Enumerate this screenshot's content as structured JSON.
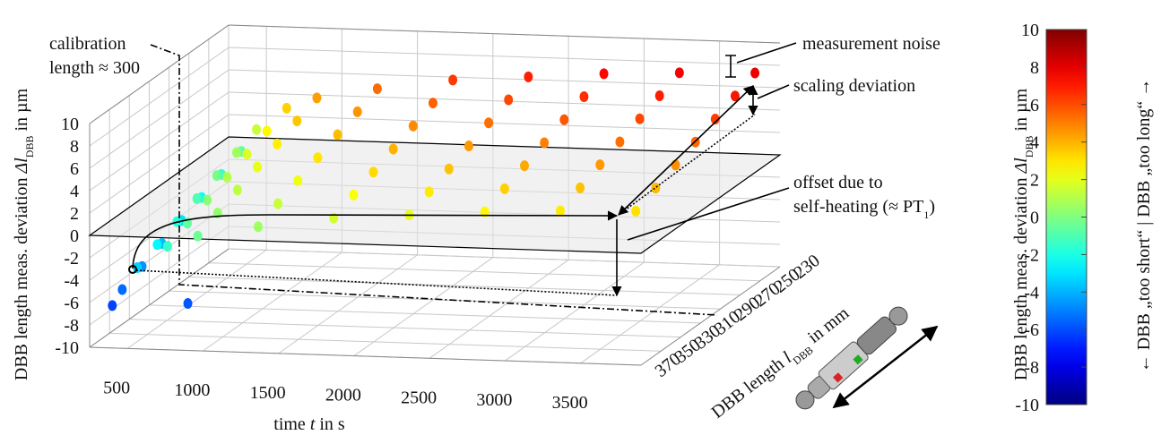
{
  "chart_data": {
    "type": "scatter3d",
    "xlabel": [
      {
        "text": "time "
      },
      {
        "text": "t",
        "style": "italic"
      },
      {
        "text": " in s"
      }
    ],
    "ylabel": [
      {
        "text": "DBB length "
      },
      {
        "text": "l",
        "style": "italic"
      },
      {
        "text": "DBB",
        "style": "sub"
      },
      {
        "text": " in mm"
      }
    ],
    "zlabel": [
      {
        "text": "DBB length meas. deviation "
      },
      {
        "text": "Δl",
        "style": "italic"
      },
      {
        "text": "DBB",
        "style": "sub"
      },
      {
        "text": " in µm"
      }
    ],
    "xlim": [
      250,
      3900
    ],
    "xticks": [
      500,
      1000,
      1500,
      2000,
      2500,
      3000,
      3500
    ],
    "ylim": [
      230,
      370
    ],
    "yticks": [
      230,
      250,
      270,
      290,
      310,
      330,
      350,
      370
    ],
    "zlim": [
      -10,
      10
    ],
    "zticks": [
      -10,
      -8,
      -6,
      -4,
      -2,
      0,
      2,
      4,
      6,
      8,
      10
    ],
    "grid": true,
    "colormap": "jet",
    "clim": [
      -10,
      10
    ],
    "reference_plane_z": 0,
    "colorbar": {
      "ticks": [
        -10,
        -8,
        -6,
        -4,
        -2,
        0,
        2,
        4,
        6,
        8,
        10
      ],
      "label": [
        {
          "text": "DBB length meas. deviation "
        },
        {
          "text": "Δl",
          "style": "italic"
        },
        {
          "text": "DBB",
          "style": "sub"
        },
        {
          "text": " in µm"
        }
      ],
      "annotation": "← DBB „too short“  |  DBB „too long“ →"
    },
    "x": [
      400,
      400,
      400,
      400,
      400,
      400,
      400,
      500,
      500,
      500,
      500,
      500,
      500,
      500,
      700,
      700,
      700,
      700,
      700,
      700,
      700,
      900,
      900,
      900,
      900,
      900,
      900,
      900,
      1300,
      1300,
      1300,
      1300,
      1300,
      1300,
      1300,
      1800,
      1800,
      1800,
      1800,
      1800,
      1800,
      1800,
      2300,
      2300,
      2300,
      2300,
      2300,
      2300,
      2300,
      2800,
      2800,
      2800,
      2800,
      2800,
      2800,
      2800,
      3300,
      3300,
      3300,
      3300,
      3300,
      3300,
      3300,
      3800,
      3800,
      3800,
      3800,
      3800,
      3800,
      3800,
      400,
      900
    ],
    "y": [
      240,
      260,
      280,
      300,
      320,
      340,
      360,
      240,
      260,
      280,
      300,
      320,
      340,
      360,
      240,
      260,
      280,
      300,
      320,
      340,
      360,
      240,
      260,
      280,
      300,
      320,
      340,
      360,
      240,
      260,
      280,
      300,
      320,
      340,
      360,
      240,
      260,
      280,
      300,
      320,
      340,
      360,
      240,
      260,
      280,
      300,
      320,
      340,
      360,
      240,
      260,
      280,
      300,
      320,
      340,
      360,
      240,
      260,
      280,
      300,
      320,
      340,
      360,
      240,
      260,
      280,
      300,
      320,
      340,
      360,
      370,
      370
    ],
    "z": [
      -0.6,
      -1.4,
      -2.2,
      -3,
      -3.8,
      -4.6,
      -5.4,
      1.4,
      0.6,
      -0.2,
      -1,
      -1.8,
      -2.6,
      -3.4,
      3.4,
      2.6,
      1.8,
      1,
      0.2,
      -0.6,
      -1.4,
      4.4,
      3.6,
      2.8,
      2,
      1.2,
      0.4,
      -0.4,
      5.4,
      4.6,
      3.8,
      3,
      2.2,
      1.4,
      0.6,
      6.4,
      5.6,
      4.8,
      4,
      3.2,
      2.4,
      1.6,
      6.9,
      6.1,
      5.3,
      4.5,
      3.7,
      2.9,
      2.1,
      7.4,
      6.6,
      5.8,
      5,
      4.2,
      3.4,
      2.6,
      7.7,
      6.9,
      6.1,
      5.3,
      4.5,
      3.7,
      2.9,
      7.9,
      7.1,
      6.3,
      5.5,
      4.7,
      3.9,
      3.1,
      -6.2,
      -5.8
    ],
    "annotations": [
      {
        "lines": [
          [
            {
              "text": "calibration"
            }
          ],
          [
            {
              "text": "length ≈ 300"
            }
          ]
        ]
      },
      {
        "lines": [
          [
            {
              "text": "measurement noise"
            }
          ]
        ]
      },
      {
        "lines": [
          [
            {
              "text": "scaling deviation"
            }
          ]
        ]
      },
      {
        "lines": [
          [
            {
              "text": "offset due to"
            }
          ],
          [
            {
              "text": "self-heating (≈ PT"
            },
            {
              "text": "1",
              "style": "sub"
            },
            {
              "text": ")"
            }
          ]
        ]
      }
    ]
  }
}
